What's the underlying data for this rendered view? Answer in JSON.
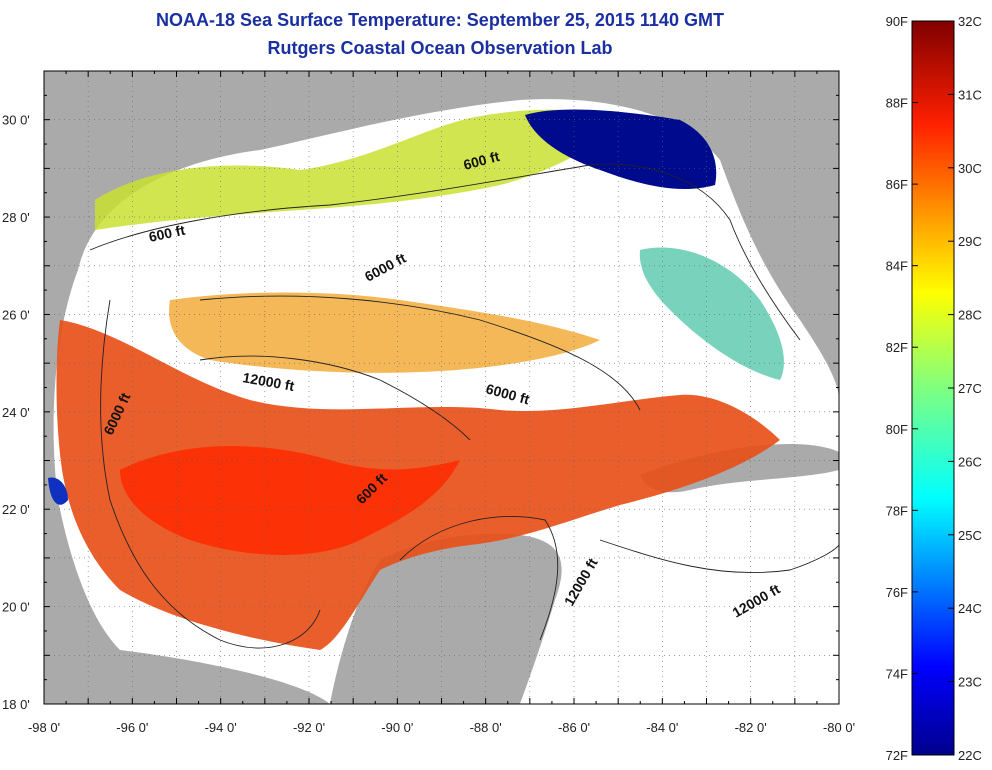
{
  "header": {
    "title": "NOAA-18 Sea Surface Temperature:  September 25, 2015 1140 GMT",
    "subtitle": "Rutgers Coastal Ocean Observation Lab"
  },
  "axes": {
    "longitude_ticks": [
      "-98 0'",
      "-96 0'",
      "-94 0'",
      "-92 0'",
      "-90 0'",
      "-88 0'",
      "-86 0'",
      "-84 0'",
      "-82 0'",
      "-80 0'"
    ],
    "latitude_ticks": [
      "30 0'",
      "28 0'",
      "26 0'",
      "24 0'",
      "22 0'",
      "20 0'",
      "18 0'"
    ],
    "lon_range": [
      -98,
      -80
    ],
    "lat_range": [
      18,
      31
    ]
  },
  "contours": {
    "labels": [
      "600 ft",
      "600 ft",
      "6000 ft",
      "12000 ft",
      "6000 ft",
      "6000 ft",
      "600 ft",
      "12000 ft",
      "12000 ft"
    ]
  },
  "colorbar": {
    "fahrenheit": [
      "90F",
      "88F",
      "86F",
      "84F",
      "82F",
      "80F",
      "78F",
      "76F",
      "74F",
      "72F"
    ],
    "celsius": [
      "32C",
      "31C",
      "30C",
      "29C",
      "28C",
      "27C",
      "26C",
      "25C",
      "24C",
      "23C",
      "22C"
    ],
    "range_c": [
      22,
      32
    ],
    "range_f": [
      72,
      90
    ]
  },
  "colors": {
    "land": "#aaaaaa",
    "cloud": "#ffffff",
    "title": "#1a2fa0",
    "warm": "#e83c10",
    "cool": "#00108c"
  }
}
